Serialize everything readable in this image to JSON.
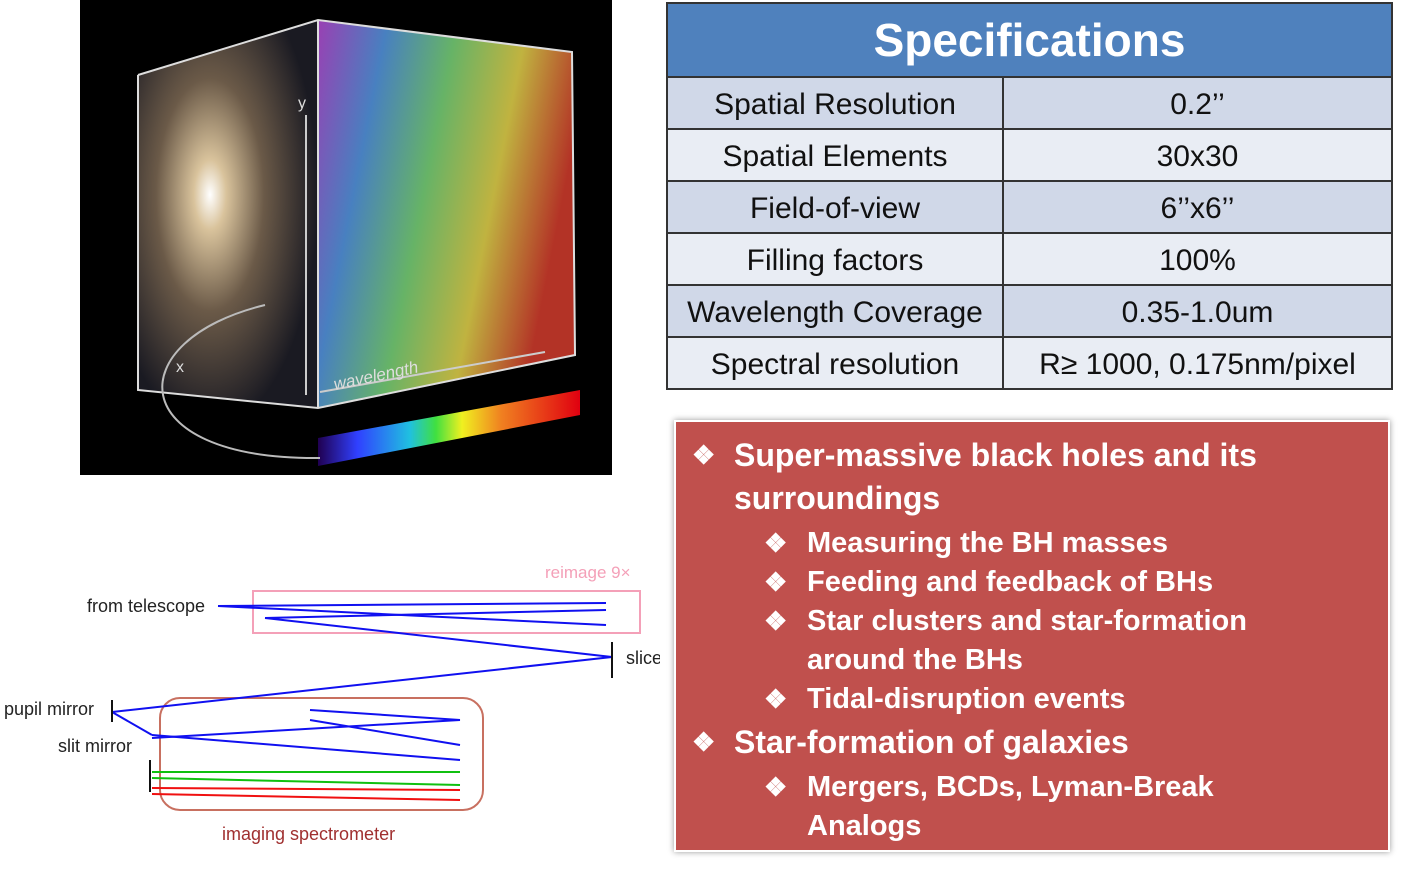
{
  "cube": {
    "y_label": "y",
    "x_label": "x",
    "z_label": "wavelength"
  },
  "optics": {
    "from_telescope": "from telescope",
    "reimage": "reimage 9×",
    "slicer": "slicer",
    "pupil_mirror": "pupil mirror",
    "slit_mirror": "slit mirror",
    "imaging_spectrometer": "imaging spectrometer"
  },
  "table": {
    "title": "Specifications",
    "rows": [
      [
        "Spatial Resolution",
        "0.2’’"
      ],
      [
        "Spatial Elements",
        "30x30"
      ],
      [
        "Field-of-view",
        "6’’x6’’"
      ],
      [
        "Filling factors",
        "100%"
      ],
      [
        "Wavelength Coverage",
        "0.35-1.0um"
      ],
      [
        "Spectral resolution",
        "R≥ 1000, 0.175nm/pixel"
      ]
    ]
  },
  "science": {
    "items": [
      {
        "level": 1,
        "text": "Super-massive black holes and its surroundings"
      },
      {
        "level": 2,
        "text": "Measuring the BH masses"
      },
      {
        "level": 2,
        "text": "Feeding and feedback of BHs"
      },
      {
        "level": 2,
        "text": "Star clusters and star-formation around the BHs"
      },
      {
        "level": 2,
        "text": "Tidal-disruption events"
      },
      {
        "level": 1,
        "text": "Star-formation of galaxies"
      },
      {
        "level": 2,
        "text": "Mergers, BCDs, Lyman-Break Analogs"
      }
    ]
  }
}
